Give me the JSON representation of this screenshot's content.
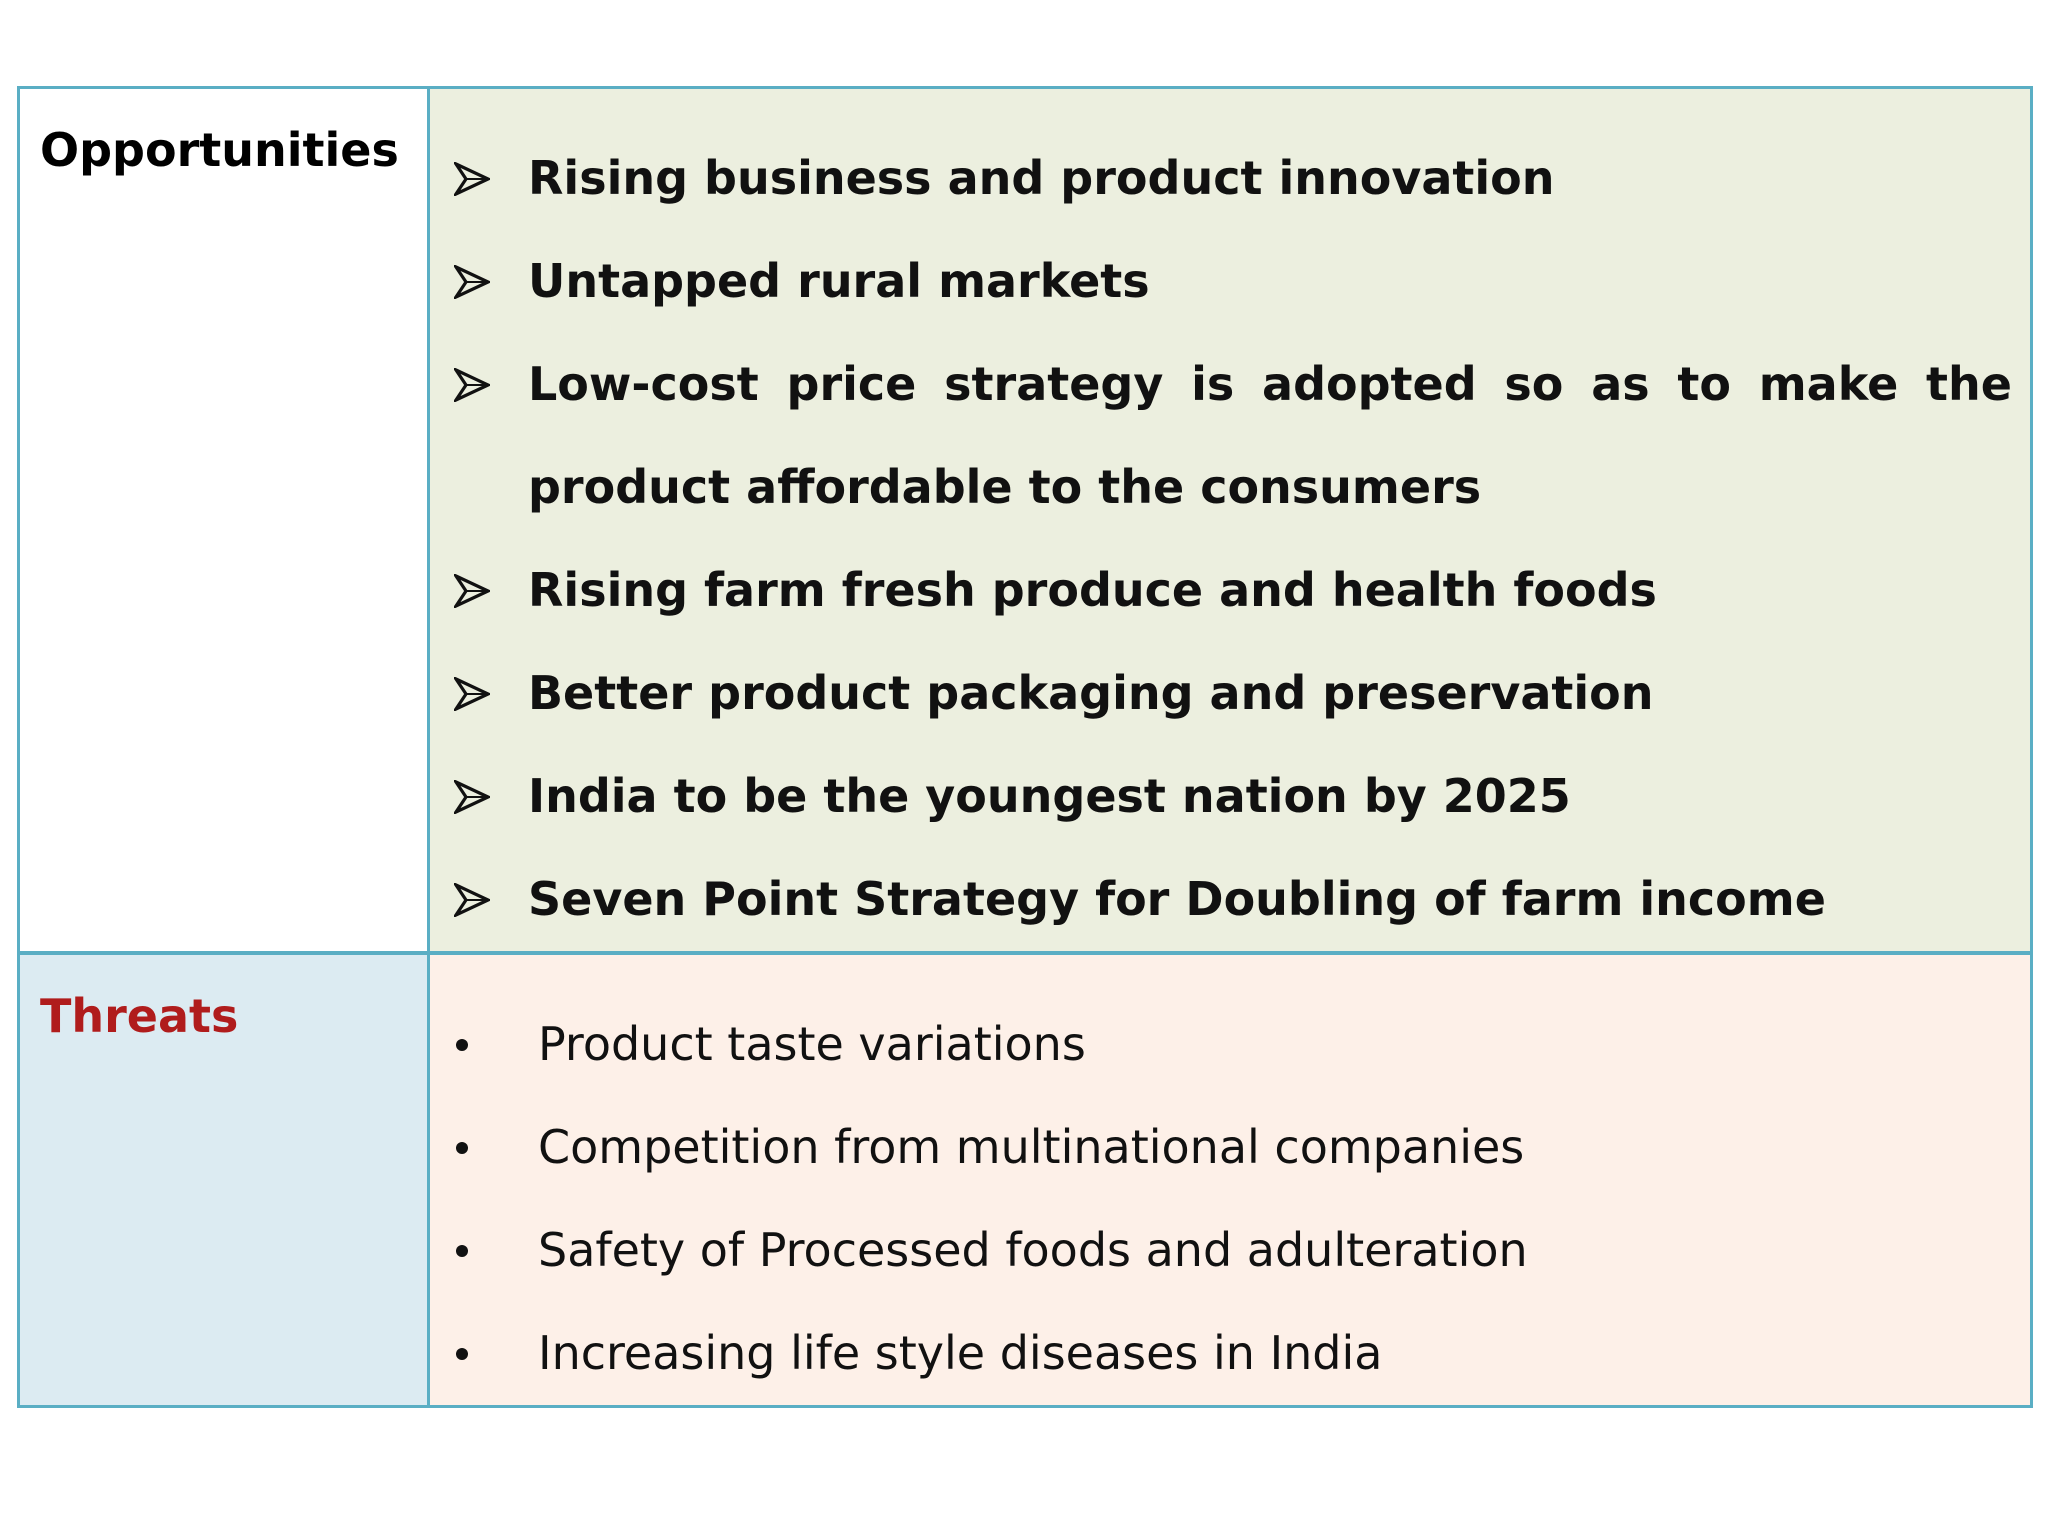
{
  "opportunities": {
    "label": "Opportunities",
    "items": [
      "Rising business and product innovation",
      "Untapped rural markets",
      "Low-cost price strategy is adopted so as to make the product affordable to the consumers",
      "Rising farm fresh produce and health foods",
      "Better product packaging and preservation",
      "India to be the youngest nation by 2025",
      "Seven Point Strategy for Doubling of farm income"
    ],
    "bullet_icon": "arrowhead-bullet-icon"
  },
  "threats": {
    "label": "Threats",
    "items": [
      "Product taste variations",
      "Competition from multinational companies",
      "Safety of Processed foods and adulteration",
      "Increasing life style diseases in India"
    ],
    "bullet_icon": "dot-bullet-icon"
  },
  "colors": {
    "border": "#5aaec4",
    "opportunities_content_bg": "#ecefdf",
    "threats_label_bg": "#dcebf2",
    "threats_content_bg": "#fdf0e8",
    "threats_label_text": "#b01c1c"
  }
}
